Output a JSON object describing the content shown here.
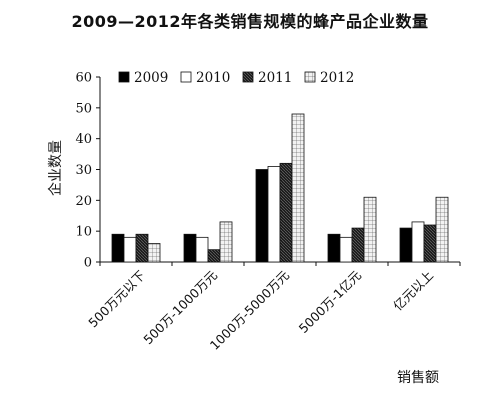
{
  "chart_data": {
    "type": "bar",
    "title": "2009—2012年各类销售规模的蜂产品企业数量",
    "xlabel": "销售额",
    "ylabel": "企业数量",
    "ylim": [
      0,
      60
    ],
    "yticks": [
      0,
      10,
      20,
      30,
      40,
      50,
      60
    ],
    "grid": false,
    "legend_position": "top-left",
    "categories": [
      "500万元以下",
      "500万-1000万元",
      "1000万-5000万元",
      "5000万-1亿元",
      "亿元以上"
    ],
    "series": [
      {
        "name": "2009",
        "values": [
          9,
          9,
          30,
          9,
          11
        ],
        "fill": "solid-black"
      },
      {
        "name": "2010",
        "values": [
          8,
          8,
          31,
          8,
          13
        ],
        "fill": "white"
      },
      {
        "name": "2011",
        "values": [
          9,
          4,
          32,
          11,
          12
        ],
        "fill": "dark-hatched"
      },
      {
        "name": "2012",
        "values": [
          6,
          13,
          48,
          21,
          21
        ],
        "fill": "light-grid"
      }
    ]
  }
}
